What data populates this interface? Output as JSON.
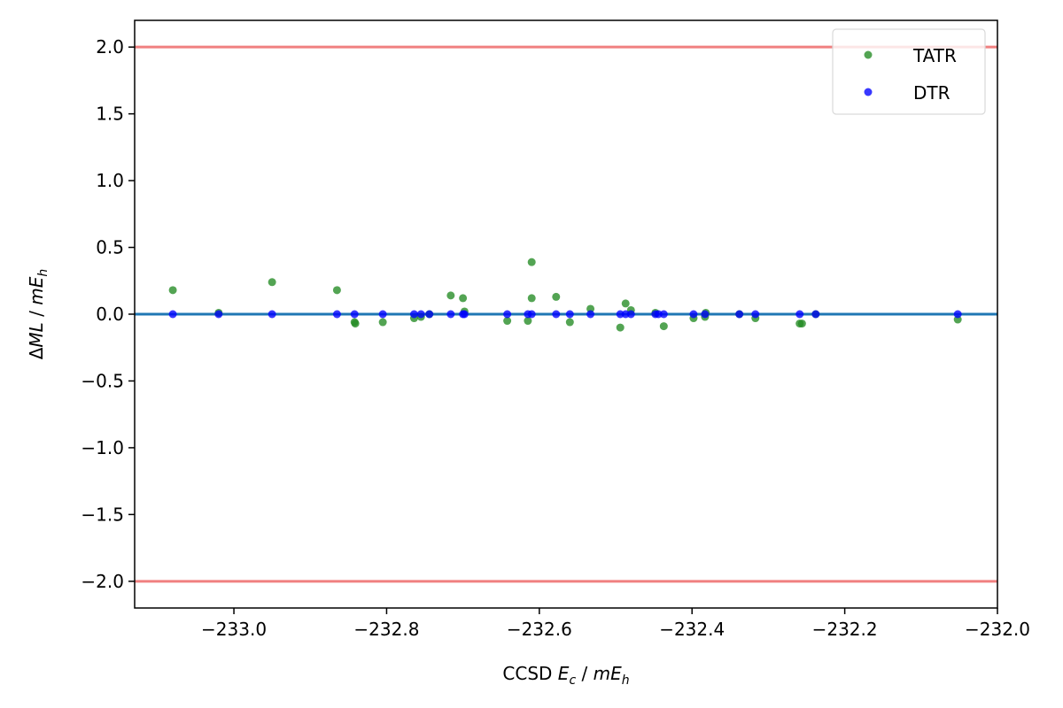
{
  "chart_data": {
    "type": "scatter",
    "title": "",
    "xlabel": "CCSD Ec / mEh",
    "ylabel": "ΔML / mEh",
    "xlim": [
      -233.13,
      -232.0
    ],
    "ylim": [
      -2.2,
      2.2
    ],
    "x_ticks": [
      -233.0,
      -232.8,
      -232.6,
      -232.4,
      -232.2,
      -232.0
    ],
    "x_tick_labels": [
      "−233.0",
      "−232.8",
      "−232.6",
      "−232.4",
      "−232.2",
      "−232.0"
    ],
    "y_ticks": [
      2.0,
      1.5,
      1.0,
      0.5,
      0.0,
      -0.5,
      -1.0,
      -1.5,
      -2.0
    ],
    "y_tick_labels": [
      "2.0",
      "1.5",
      "1.0",
      "0.5",
      "0.0",
      "−0.5",
      "−1.0",
      "−1.5",
      "−2.0"
    ],
    "grid": false,
    "legend_position": "top-right",
    "reference_lines": [
      {
        "y": 2.0,
        "color": "#f08080"
      },
      {
        "y": 0.0,
        "color": "#1f77b4"
      },
      {
        "y": -2.0,
        "color": "#f08080"
      }
    ],
    "series": [
      {
        "name": "TATR",
        "color": "#228b22",
        "points": [
          [
            -233.08,
            0.18
          ],
          [
            -233.02,
            0.01
          ],
          [
            -232.95,
            0.24
          ],
          [
            -232.865,
            0.18
          ],
          [
            -232.842,
            -0.06
          ],
          [
            -232.841,
            -0.07
          ],
          [
            -232.805,
            -0.06
          ],
          [
            -232.764,
            -0.03
          ],
          [
            -232.755,
            -0.02
          ],
          [
            -232.744,
            0.0
          ],
          [
            -232.716,
            0.14
          ],
          [
            -232.7,
            0.12
          ],
          [
            -232.698,
            0.02
          ],
          [
            -232.642,
            -0.05
          ],
          [
            -232.615,
            -0.05
          ],
          [
            -232.61,
            0.39
          ],
          [
            -232.61,
            0.12
          ],
          [
            -232.578,
            0.13
          ],
          [
            -232.56,
            -0.06
          ],
          [
            -232.533,
            0.04
          ],
          [
            -232.494,
            -0.1
          ],
          [
            -232.487,
            0.08
          ],
          [
            -232.48,
            0.03
          ],
          [
            -232.448,
            0.01
          ],
          [
            -232.437,
            -0.09
          ],
          [
            -232.398,
            -0.03
          ],
          [
            -232.383,
            -0.02
          ],
          [
            -232.382,
            0.01
          ],
          [
            -232.338,
            0.0
          ],
          [
            -232.317,
            -0.03
          ],
          [
            -232.259,
            -0.07
          ],
          [
            -232.256,
            -0.07
          ],
          [
            -232.238,
            0.0
          ],
          [
            -232.052,
            -0.04
          ]
        ]
      },
      {
        "name": "DTR",
        "color": "#0000ff",
        "points": [
          [
            -233.08,
            0.0
          ],
          [
            -233.02,
            0.0
          ],
          [
            -232.95,
            0.0
          ],
          [
            -232.865,
            0.0
          ],
          [
            -232.842,
            0.0
          ],
          [
            -232.805,
            0.0
          ],
          [
            -232.764,
            0.0
          ],
          [
            -232.755,
            0.0
          ],
          [
            -232.744,
            0.0
          ],
          [
            -232.716,
            0.0
          ],
          [
            -232.7,
            0.0
          ],
          [
            -232.698,
            0.0
          ],
          [
            -232.642,
            0.0
          ],
          [
            -232.615,
            0.0
          ],
          [
            -232.61,
            0.0
          ],
          [
            -232.578,
            0.0
          ],
          [
            -232.56,
            0.0
          ],
          [
            -232.533,
            0.0
          ],
          [
            -232.494,
            0.0
          ],
          [
            -232.487,
            0.0
          ],
          [
            -232.48,
            0.0
          ],
          [
            -232.448,
            0.0
          ],
          [
            -232.444,
            0.0
          ],
          [
            -232.437,
            0.0
          ],
          [
            -232.398,
            0.0
          ],
          [
            -232.383,
            0.0
          ],
          [
            -232.338,
            0.0
          ],
          [
            -232.317,
            0.0
          ],
          [
            -232.259,
            0.0
          ],
          [
            -232.238,
            0.0
          ],
          [
            -232.052,
            0.0
          ]
        ]
      }
    ]
  }
}
